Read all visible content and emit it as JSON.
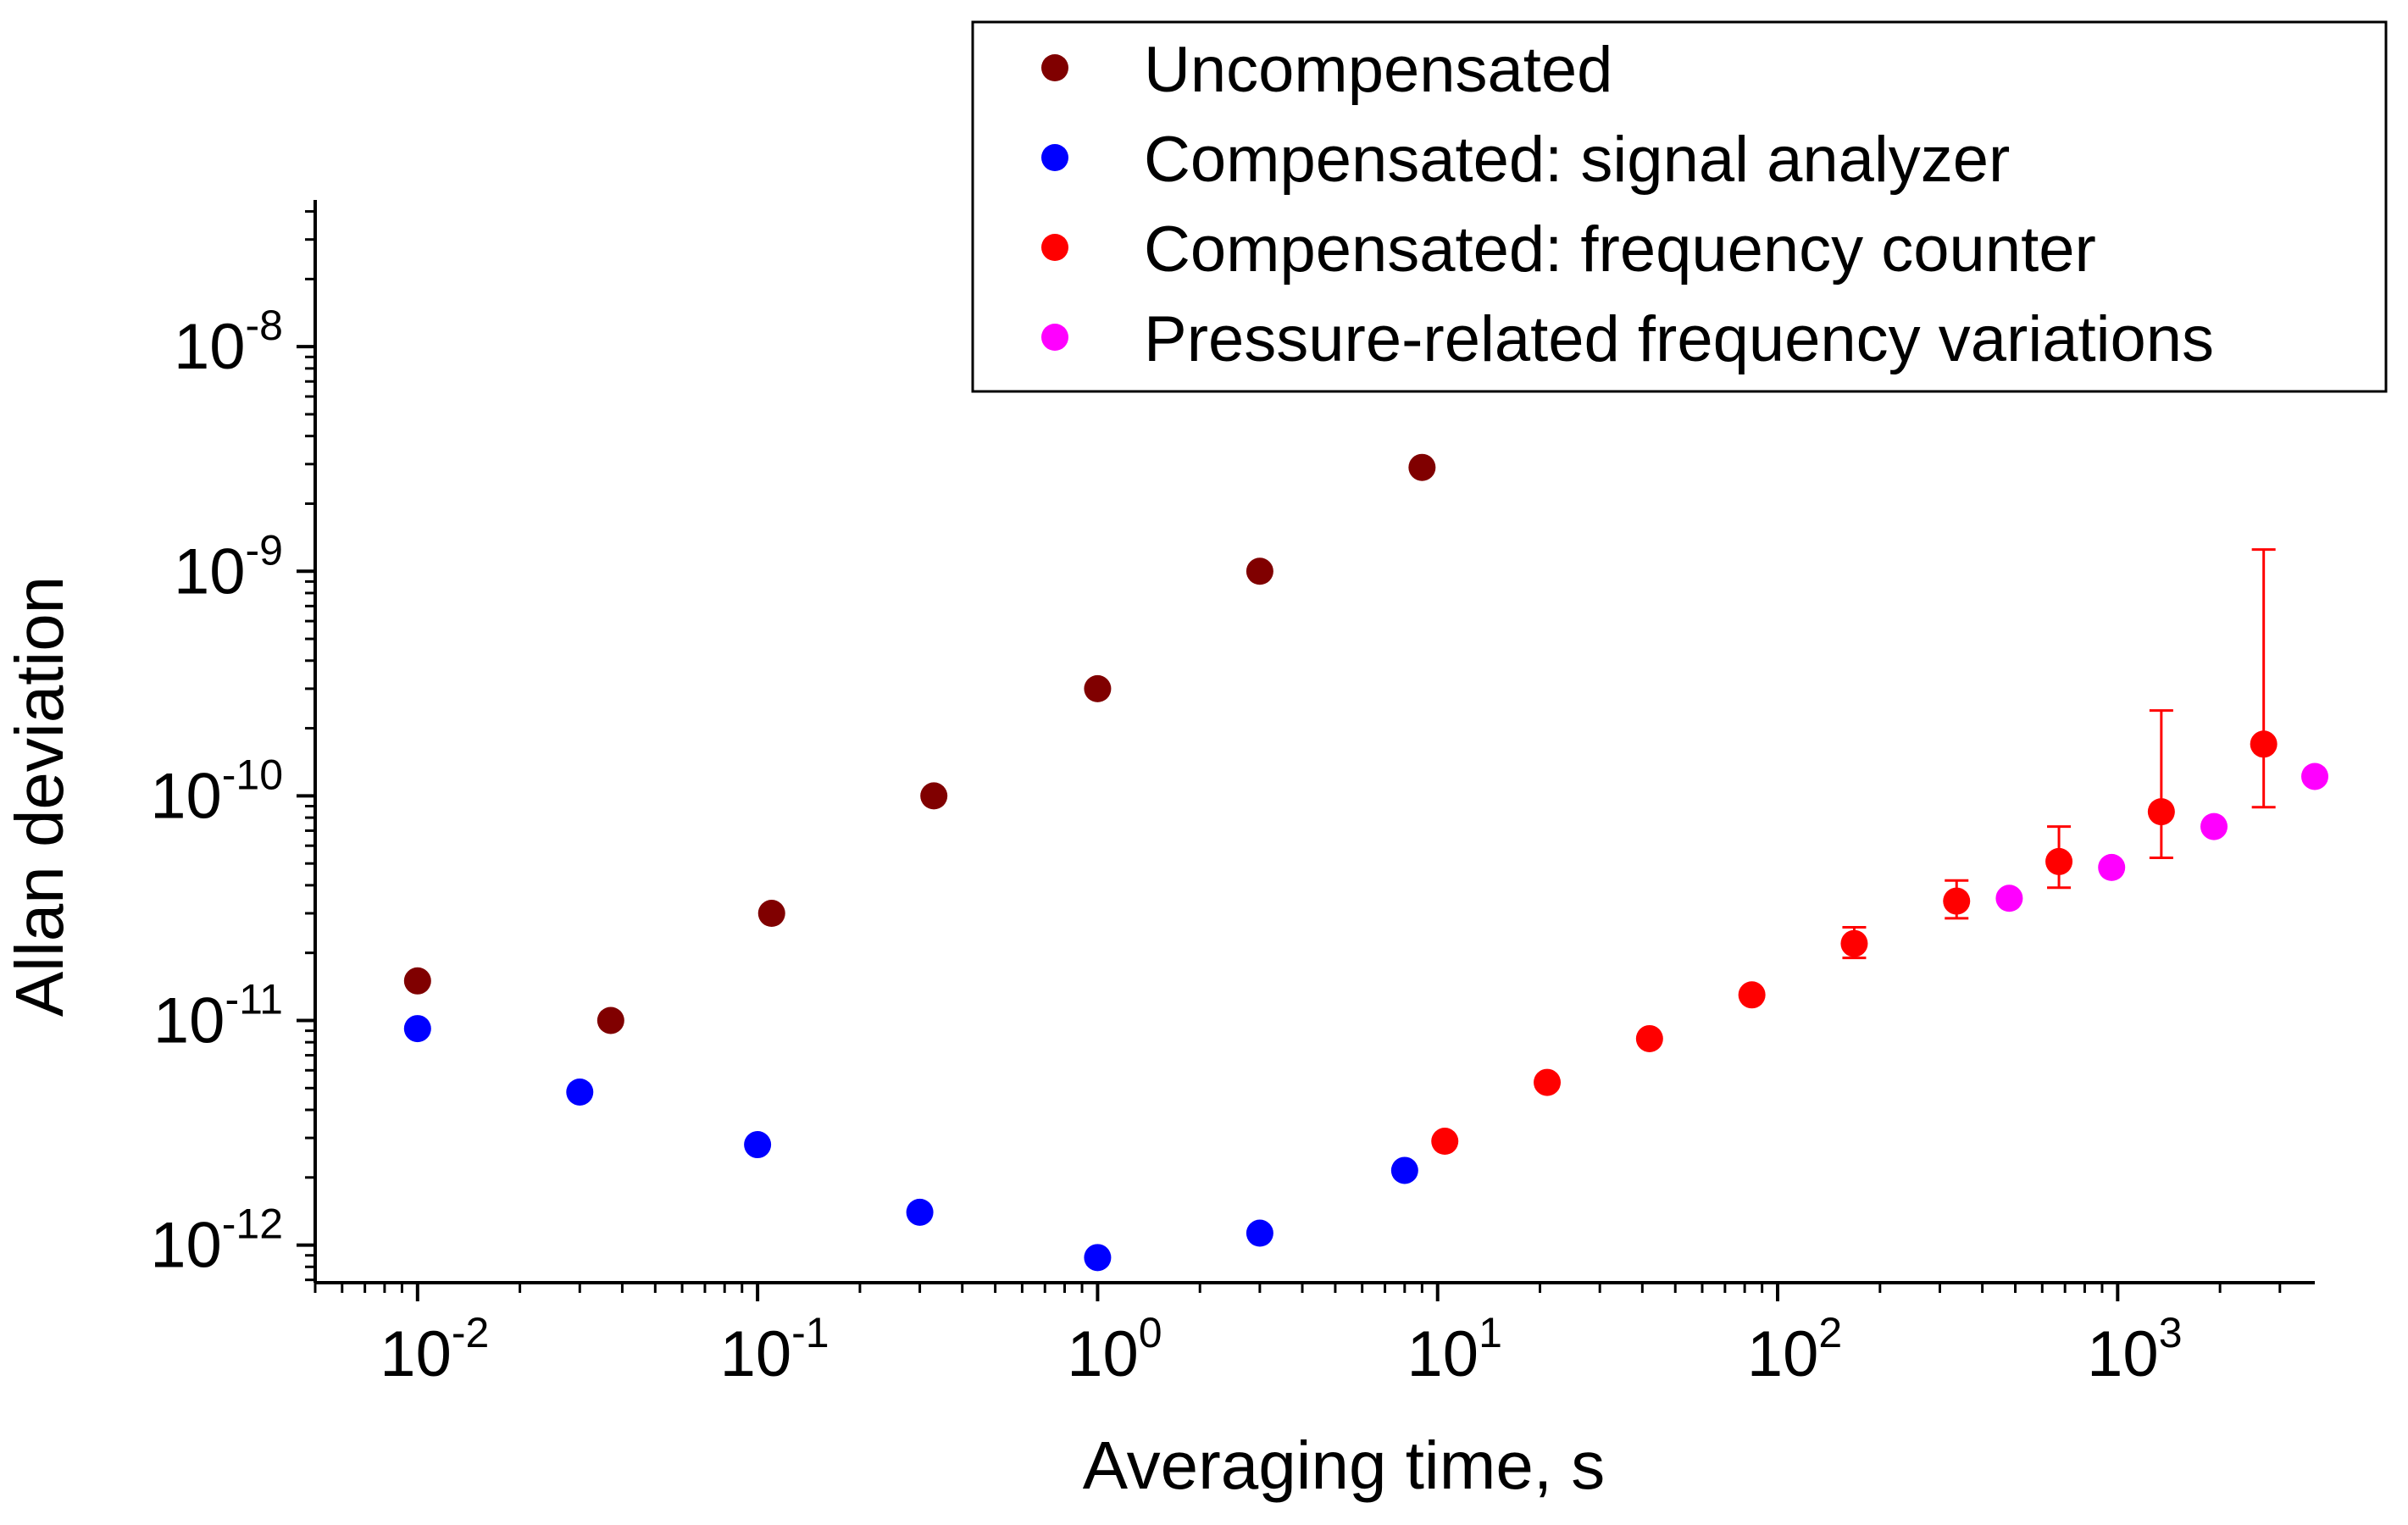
{
  "chart_data": {
    "type": "scatter",
    "title": "",
    "xlabel": "Averaging time, s",
    "ylabel": "Allan deviation",
    "x_scale": "log",
    "y_scale": "log",
    "xlim": [
      0.005,
      3800
    ],
    "ylim": [
      6.8e-13,
      4.5e-08
    ],
    "grid": false,
    "legend_position": "top-right",
    "x_ticks": [
      {
        "base": "10",
        "exp": "-2",
        "value": 0.01
      },
      {
        "base": "10",
        "exp": "-1",
        "value": 0.1
      },
      {
        "base": "10",
        "exp": "0",
        "value": 1
      },
      {
        "base": "10",
        "exp": "1",
        "value": 10
      },
      {
        "base": "10",
        "exp": "2",
        "value": 100
      },
      {
        "base": "10",
        "exp": "3",
        "value": 1000
      }
    ],
    "y_ticks": [
      {
        "base": "10",
        "exp": "-12",
        "value": 1e-12
      },
      {
        "base": "10",
        "exp": "-11",
        "value": 1e-11
      },
      {
        "base": "10",
        "exp": "-10",
        "value": 1e-10
      },
      {
        "base": "10",
        "exp": "-9",
        "value": 1e-09
      },
      {
        "base": "10",
        "exp": "-8",
        "value": 1e-08
      }
    ],
    "series": [
      {
        "name": "Uncompensated",
        "color": "#800000",
        "points": [
          {
            "x": 0.01,
            "y": 1.5e-11
          },
          {
            "x": 0.037,
            "y": 1e-11
          },
          {
            "x": 0.11,
            "y": 3e-11
          },
          {
            "x": 0.33,
            "y": 1e-10
          },
          {
            "x": 1.0,
            "y": 3e-10
          },
          {
            "x": 3.0,
            "y": 1e-09
          },
          {
            "x": 9.0,
            "y": 2.9e-09
          }
        ]
      },
      {
        "name": "Compensated: signal analyzer",
        "color": "#0000ff",
        "points": [
          {
            "x": 0.01,
            "y": 9.2e-12
          },
          {
            "x": 0.03,
            "y": 4.8e-12
          },
          {
            "x": 0.1,
            "y": 2.8e-12
          },
          {
            "x": 0.3,
            "y": 1.4e-12
          },
          {
            "x": 1.0,
            "y": 8.8e-13
          },
          {
            "x": 3.0,
            "y": 1.13e-12
          },
          {
            "x": 8.0,
            "y": 2.15e-12
          }
        ]
      },
      {
        "name": "Compensated: frequency counter",
        "color": "#ff0000",
        "points": [
          {
            "x": 10.5,
            "y": 2.9e-12
          },
          {
            "x": 21,
            "y": 5.3e-12
          },
          {
            "x": 42,
            "y": 8.3e-12
          },
          {
            "x": 84,
            "y": 1.3e-11
          },
          {
            "x": 168,
            "y": 2.2e-11,
            "err_low": 1.9e-11,
            "err_high": 2.6e-11
          },
          {
            "x": 336,
            "y": 3.4e-11,
            "err_low": 2.85e-11,
            "err_high": 4.2e-11
          },
          {
            "x": 672,
            "y": 5.1e-11,
            "err_low": 3.9e-11,
            "err_high": 7.3e-11
          },
          {
            "x": 1344,
            "y": 8.5e-11,
            "err_low": 5.3e-11,
            "err_high": 2.4e-10
          },
          {
            "x": 2688,
            "y": 1.7e-10,
            "err_low": 8.9e-11,
            "err_high": 1.25e-09
          }
        ]
      },
      {
        "name": "Pressure-related frequency variations",
        "color": "#ff00ff",
        "points": [
          {
            "x": 480,
            "y": 3.5e-11
          },
          {
            "x": 960,
            "y": 4.8e-11
          },
          {
            "x": 1920,
            "y": 7.3e-11
          },
          {
            "x": 3800,
            "y": 1.22e-10
          }
        ]
      }
    ]
  }
}
